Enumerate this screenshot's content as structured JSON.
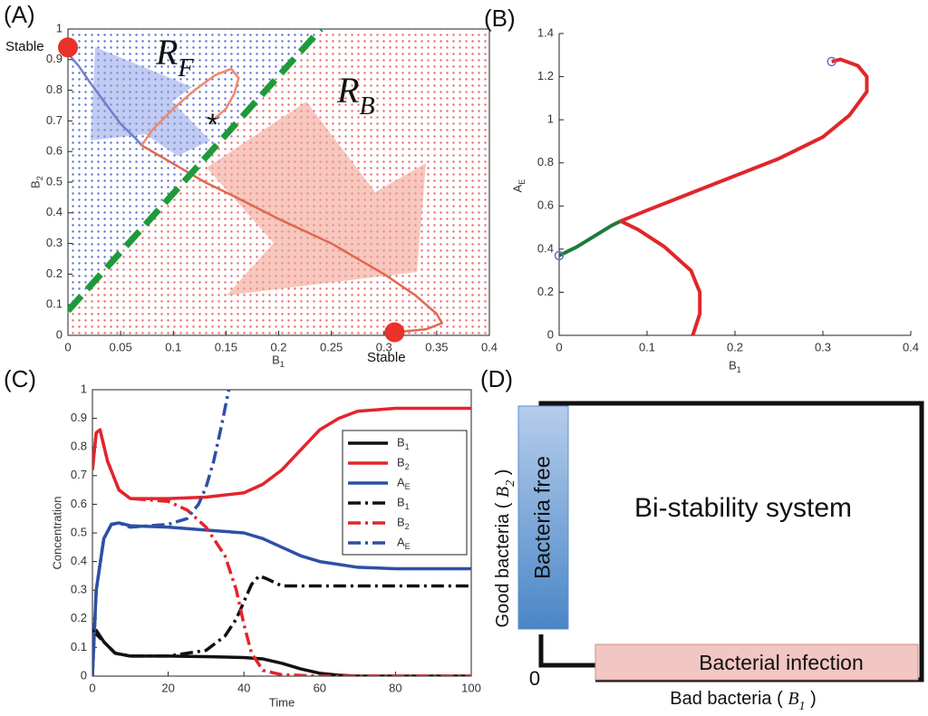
{
  "chart_data": [
    {
      "type": "line",
      "panel": "(A)",
      "xlabel": "B1",
      "ylabel": "B2",
      "xlim": [
        0,
        0.4
      ],
      "xticks": [
        0,
        0.05,
        0.1,
        0.15,
        0.2,
        0.25,
        0.3,
        0.35,
        0.4
      ],
      "ylim": [
        0,
        1
      ],
      "yticks": [
        0,
        0.1,
        0.2,
        0.3,
        0.4,
        0.5,
        0.6,
        0.7,
        0.8,
        0.9,
        1
      ],
      "frame": "box",
      "regions": {
        "left": "#5a6fd0",
        "right": "#e86a6a"
      },
      "annotations": [
        "RF",
        "RB",
        "*"
      ],
      "series": [
        {
          "color": "#7080c8",
          "x": [
            0,
            0.01,
            0.02,
            0.035,
            0.05,
            0.065,
            0.07
          ],
          "values": [
            0.92,
            0.88,
            0.83,
            0.76,
            0.69,
            0.64,
            0.62
          ]
        },
        {
          "color": "#f08a6a",
          "x": [
            0.07,
            0.08,
            0.1,
            0.12,
            0.14,
            0.155,
            0.162,
            0.158,
            0.15,
            0.14
          ],
          "values": [
            0.62,
            0.67,
            0.74,
            0.8,
            0.85,
            0.87,
            0.84,
            0.79,
            0.74,
            0.71
          ]
        },
        {
          "color": "#e0684e",
          "x": [
            0.07,
            0.1,
            0.13,
            0.16,
            0.2,
            0.25,
            0.3,
            0.33,
            0.35,
            0.355,
            0.34,
            0.31
          ],
          "values": [
            0.62,
            0.56,
            0.5,
            0.45,
            0.38,
            0.3,
            0.2,
            0.13,
            0.07,
            0.04,
            0.02,
            0.01
          ]
        },
        {
          "color": "#1e9a3a",
          "dash": true,
          "width": 7,
          "x": [
            0,
            0.24
          ],
          "values": [
            0.08,
            1
          ]
        }
      ],
      "points": [
        {
          "x": 0,
          "y": 0.94,
          "label": "Stable",
          "color": "#e8322a"
        },
        {
          "x": 0.31,
          "y": 0.01,
          "label": "Stable",
          "color": "#e8322a"
        }
      ]
    },
    {
      "type": "line",
      "panel": "(B)",
      "xlabel": "B1",
      "ylabel": "AE",
      "xlim": [
        0,
        0.4
      ],
      "xticks": [
        0,
        0.1,
        0.2,
        0.3,
        0.4
      ],
      "ylim": [
        0,
        1.4
      ],
      "yticks": [
        0,
        0.2,
        0.4,
        0.6,
        0.8,
        1,
        1.2,
        1.4
      ],
      "frame": "axes",
      "series": [
        {
          "color": "#1f7a3a",
          "width": 4,
          "x": [
            0,
            0.02,
            0.04,
            0.06,
            0.07
          ],
          "values": [
            0.37,
            0.41,
            0.46,
            0.51,
            0.53
          ]
        },
        {
          "color": "#e0262a",
          "width": 4,
          "x": [
            0.152,
            0.16,
            0.16,
            0.15,
            0.12,
            0.09,
            0.07
          ],
          "values": [
            0,
            0.1,
            0.2,
            0.3,
            0.41,
            0.49,
            0.53
          ]
        },
        {
          "color": "#e0262a",
          "width": 4,
          "x": [
            0.07,
            0.1,
            0.15,
            0.2,
            0.25,
            0.3,
            0.33,
            0.35,
            0.35,
            0.34,
            0.32,
            0.31
          ],
          "values": [
            0.53,
            0.58,
            0.66,
            0.74,
            0.82,
            0.92,
            1.02,
            1.13,
            1.2,
            1.25,
            1.28,
            1.27
          ]
        }
      ],
      "points": [
        {
          "x": 0,
          "y": 0.37,
          "color": "#6670c0"
        },
        {
          "x": 0.31,
          "y": 1.27,
          "color": "#6670c0"
        }
      ]
    },
    {
      "type": "line",
      "panel": "(C)",
      "xlabel": "Time",
      "ylabel": "Concentration",
      "xlim": [
        0,
        100
      ],
      "xticks": [
        0,
        20,
        40,
        60,
        80,
        100
      ],
      "ylim": [
        0,
        1
      ],
      "yticks": [
        0,
        0.1,
        0.2,
        0.3,
        0.4,
        0.5,
        0.6,
        0.7,
        0.8,
        0.9,
        1
      ],
      "frame": "box",
      "legend": "upper right",
      "series": [
        {
          "name": "B1",
          "color": "#111111",
          "width": 3.5,
          "x": [
            0,
            1,
            3,
            6,
            10,
            20,
            30,
            40,
            45,
            50,
            55,
            60,
            65,
            70,
            100
          ],
          "values": [
            0.16,
            0.16,
            0.12,
            0.08,
            0.07,
            0.07,
            0.068,
            0.065,
            0.06,
            0.045,
            0.025,
            0.01,
            0.003,
            0,
            0
          ]
        },
        {
          "name": "B2",
          "color": "#e3242b",
          "width": 3.5,
          "x": [
            0,
            1,
            2,
            4,
            7,
            10,
            20,
            30,
            40,
            45,
            50,
            55,
            60,
            65,
            70,
            80,
            100
          ],
          "values": [
            0.72,
            0.85,
            0.86,
            0.75,
            0.65,
            0.62,
            0.62,
            0.625,
            0.64,
            0.67,
            0.72,
            0.79,
            0.86,
            0.9,
            0.925,
            0.935,
            0.935
          ]
        },
        {
          "name": "AE",
          "color": "#2e4fa6",
          "width": 3.5,
          "x": [
            0,
            1,
            3,
            5,
            7,
            10,
            20,
            30,
            40,
            45,
            50,
            55,
            60,
            70,
            80,
            100
          ],
          "values": [
            0,
            0.3,
            0.48,
            0.53,
            0.535,
            0.525,
            0.52,
            0.51,
            0.5,
            0.48,
            0.45,
            0.42,
            0.4,
            0.38,
            0.375,
            0.375
          ]
        },
        {
          "name": "B1",
          "color": "#111111",
          "width": 3.5,
          "dash": true,
          "x": [
            0,
            3,
            6,
            10,
            20,
            30,
            35,
            38,
            40,
            42,
            44,
            46,
            50,
            60,
            100
          ],
          "values": [
            0.16,
            0.12,
            0.08,
            0.07,
            0.07,
            0.09,
            0.14,
            0.2,
            0.26,
            0.32,
            0.35,
            0.34,
            0.315,
            0.315,
            0.315
          ]
        },
        {
          "name": "B2",
          "color": "#e3242b",
          "width": 3.5,
          "dash": true,
          "x": [
            0,
            1,
            2,
            4,
            7,
            10,
            20,
            25,
            30,
            35,
            38,
            40,
            42,
            45,
            50,
            60,
            100
          ],
          "values": [
            0.72,
            0.85,
            0.86,
            0.75,
            0.65,
            0.62,
            0.61,
            0.58,
            0.52,
            0.42,
            0.3,
            0.18,
            0.08,
            0.02,
            0.005,
            0,
            0
          ]
        },
        {
          "name": "AE",
          "color": "#2e4fa6",
          "width": 3.5,
          "dash": true,
          "x": [
            0,
            1,
            3,
            5,
            7,
            10,
            20,
            25,
            28,
            30,
            32,
            34,
            36
          ],
          "values": [
            0,
            0.3,
            0.48,
            0.53,
            0.535,
            0.52,
            0.53,
            0.55,
            0.6,
            0.66,
            0.75,
            0.87,
            1
          ]
        }
      ]
    }
  ],
  "diagram": {
    "panel": "(D)",
    "title": "Bi-stability system",
    "free_label": "Bacteria free",
    "infection_label": "Bacterial infection",
    "ylabel": {
      "text": "Good bacteria (",
      "symbol": "B2",
      "close": ")"
    },
    "xlabel": {
      "text": "Bad bacteria (",
      "symbol": "B1",
      "close": ")"
    },
    "origin": "0"
  }
}
